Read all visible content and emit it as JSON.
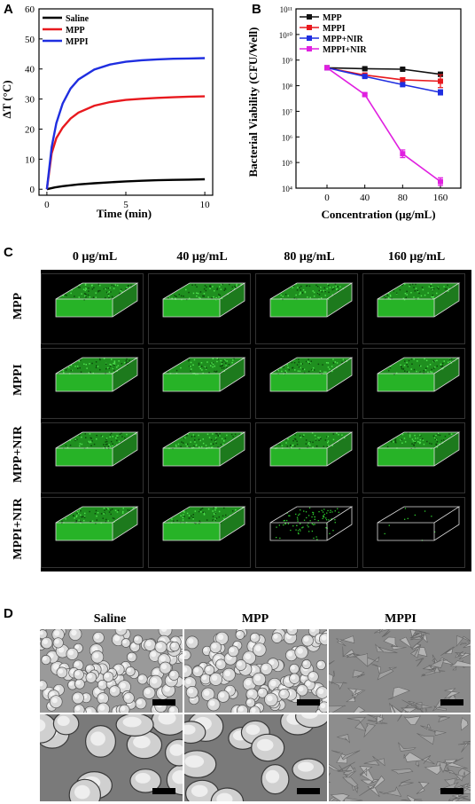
{
  "panels": {
    "a": "A",
    "b": "B",
    "c": "C",
    "d": "D"
  },
  "chart_data": [
    {
      "type": "line",
      "xlabel": "Time (min)",
      "ylabel": "ΔT (°C)",
      "xlim": [
        -0.5,
        10.5
      ],
      "ylim": [
        -2,
        60
      ],
      "xticks": [
        0,
        5,
        10
      ],
      "yticks": [
        0,
        10,
        20,
        30,
        40,
        50,
        60
      ],
      "legend_position": "top-left",
      "series": [
        {
          "name": "Saline",
          "color": "#000000",
          "x": [
            0,
            0.5,
            1,
            2,
            3,
            4,
            5,
            6,
            7,
            8,
            9,
            10
          ],
          "y": [
            0,
            0.6,
            1.0,
            1.6,
            2.0,
            2.3,
            2.6,
            2.8,
            3.0,
            3.1,
            3.2,
            3.3
          ]
        },
        {
          "name": "MPP",
          "color": "#e8191e",
          "x": [
            0,
            0.3,
            0.6,
            1,
            1.5,
            2,
            3,
            4,
            5,
            6,
            7,
            8,
            9,
            10
          ],
          "y": [
            0,
            12,
            17,
            20.5,
            23.5,
            25.5,
            27.8,
            29,
            29.7,
            30.1,
            30.4,
            30.6,
            30.8,
            30.9
          ]
        },
        {
          "name": "MPPI",
          "color": "#1f2ee0",
          "x": [
            0,
            0.3,
            0.6,
            1,
            1.5,
            2,
            3,
            4,
            5,
            6,
            7,
            8,
            9,
            10
          ],
          "y": [
            0,
            14,
            22,
            28.5,
            33.5,
            36.5,
            39.8,
            41.5,
            42.4,
            42.9,
            43.2,
            43.4,
            43.5,
            43.6
          ]
        }
      ]
    },
    {
      "type": "line",
      "xlabel": "Concentration (μg/mL)",
      "ylabel": "Bacterial Viability (CFU/Well)",
      "yscale": "log",
      "x_categories": [
        "0",
        "40",
        "80",
        "160"
      ],
      "ylim_exp": [
        4,
        11
      ],
      "ytick_labels": [
        "10⁴",
        "10⁵",
        "10⁶",
        "10⁷",
        "10⁸",
        "10⁹",
        "10¹⁰",
        "10¹¹"
      ],
      "legend_position": "top-left",
      "series": [
        {
          "name": "MPP",
          "color": "#111111",
          "marker": "square",
          "y": [
            500000000.0,
            460000000.0,
            440000000.0,
            280000000.0
          ],
          "err_exp": [
            0.05,
            0.05,
            0.05,
            0.08
          ]
        },
        {
          "name": "MPPI",
          "color": "#e8191e",
          "marker": "square",
          "y": [
            500000000.0,
            260000000.0,
            170000000.0,
            150000000.0
          ],
          "err_exp": [
            0.05,
            0.06,
            0.08,
            0.25
          ]
        },
        {
          "name": "MPP+NIR",
          "color": "#1f2ee0",
          "marker": "square",
          "y": [
            500000000.0,
            230000000.0,
            110000000.0,
            55000000.0
          ],
          "err_exp": [
            0.05,
            0.05,
            0.06,
            0.1
          ]
        },
        {
          "name": "MPPI+NIR",
          "color": "#e020e0",
          "marker": "square",
          "y": [
            500000000.0,
            45000000.0,
            220000.0,
            18000.0
          ],
          "err_exp": [
            0.05,
            0.05,
            0.15,
            0.15
          ]
        }
      ]
    }
  ],
  "panel_c": {
    "columns": [
      "0 μg/mL",
      "40 μg/mL",
      "80 μg/mL",
      "160 μg/mL"
    ],
    "rows": [
      "MPP",
      "MPPI",
      "MPP+NIR",
      "MPPI+NIR"
    ],
    "stain_color": "#2ecc2e",
    "density": [
      [
        1,
        1,
        1,
        1
      ],
      [
        1,
        1,
        1,
        1
      ],
      [
        1,
        1,
        1,
        1
      ],
      [
        1,
        1,
        0.35,
        0.04
      ]
    ]
  },
  "panel_d": {
    "columns": [
      "Saline",
      "MPP",
      "MPPI"
    ]
  }
}
